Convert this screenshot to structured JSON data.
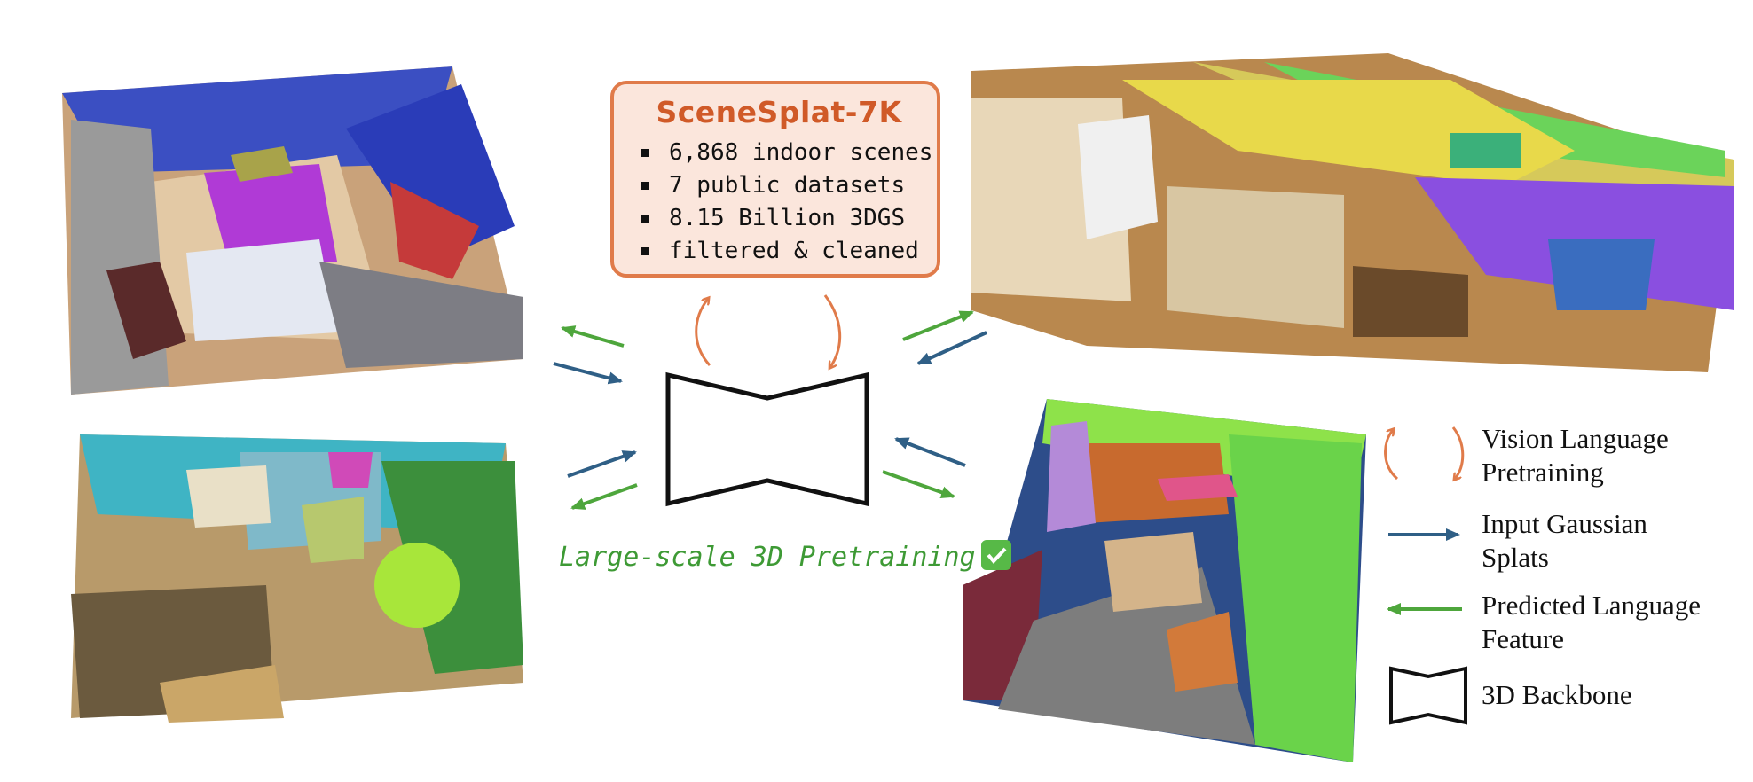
{
  "colors": {
    "orange": "#e07b4a",
    "blue": "#2f5f86",
    "green": "#4ea63c",
    "box_fill": "#fbe6dc",
    "caption_green": "#3e9a35"
  },
  "infobox": {
    "title": "SceneSplat-7K",
    "items": [
      "6,868 indoor scenes",
      "7 public datasets",
      "8.15 Billion 3DGS",
      "filtered & cleaned"
    ]
  },
  "caption": {
    "text": "Large-scale 3D Pretraining",
    "icon": "checkmark-box-icon"
  },
  "legend": {
    "vl_line1": "Vision Language",
    "vl_line2": "Pretraining",
    "input_line1": "Input Gaussian",
    "input_line2": "Splats",
    "pred_line1": "Predicted Language",
    "pred_line2": "Feature",
    "backbone": "3D Backbone"
  },
  "scenes": [
    {
      "name": "scene-top-left",
      "icon": "bedroom-3dgs-render"
    },
    {
      "name": "scene-bottom-left",
      "icon": "apartment-3dgs-render"
    },
    {
      "name": "scene-top-right",
      "icon": "bedroom-bathroom-3dgs-render"
    },
    {
      "name": "scene-bottom-right",
      "icon": "classroom-3dgs-render"
    }
  ]
}
